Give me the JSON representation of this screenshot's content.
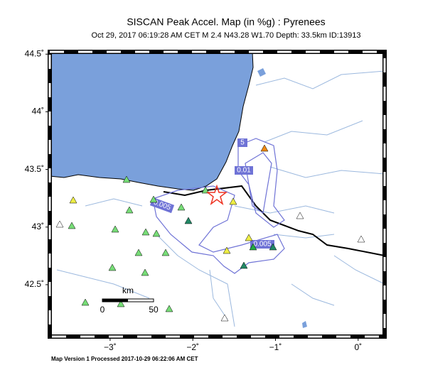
{
  "header": {
    "title": "SISCAN Peak Accel. Map (in %g) : Pyrenees",
    "subtitle": "Oct 29, 2017 06:19:28 AM CET   M 2.4   N43.28 W1.70   Depth: 33.5km   ID:13913"
  },
  "map": {
    "xlim": [
      -3.73,
      0.32
    ],
    "ylim": [
      42.05,
      44.52
    ],
    "lat_ticks": [
      {
        "value": 44.5,
        "label": "44.5˚"
      },
      {
        "value": 44,
        "label": "44˚"
      },
      {
        "value": 43.5,
        "label": "43.5˚"
      },
      {
        "value": 43,
        "label": "43˚"
      },
      {
        "value": 42.5,
        "label": "42.5˚"
      }
    ],
    "lon_ticks": [
      {
        "value": -3,
        "label": "−3˚"
      },
      {
        "value": -2,
        "label": "−2˚"
      },
      {
        "value": -1,
        "label": "−1˚"
      },
      {
        "value": 0,
        "label": "0˚"
      }
    ],
    "contour_labels": [
      "5",
      "0.01",
      "0.005",
      "0.005"
    ],
    "scale_bar": {
      "unit": "km",
      "start": "0",
      "end": "50"
    }
  },
  "footer": "Map Version 1 Processed 2017-10-29 06:22:06 AM CET"
}
